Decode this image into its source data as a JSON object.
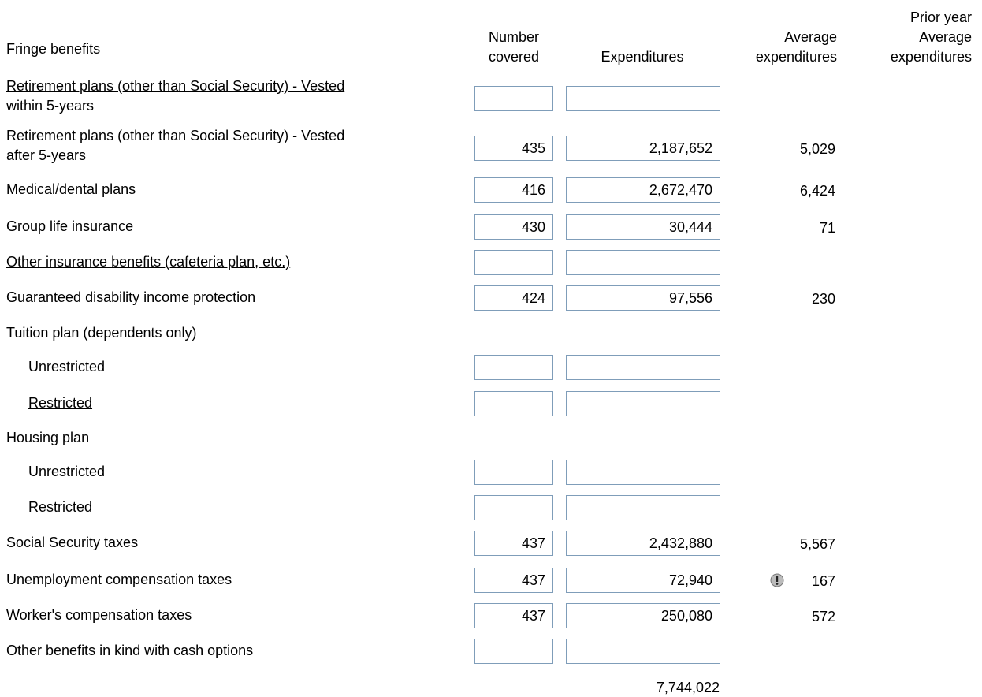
{
  "header": {
    "label": "Fringe benefits",
    "number": [
      "Number",
      "covered"
    ],
    "expenditures": "Expenditures",
    "average": [
      "Average",
      "expenditures"
    ],
    "prior": [
      "Prior year",
      "Average",
      "expenditures"
    ]
  },
  "rows": [
    {
      "label": [
        "Retirement plans (other than Social Security) - Vested",
        "within 5-years"
      ],
      "underline": true,
      "inputs": true
    },
    {
      "label": [
        "Retirement plans (other than Social Security) - Vested",
        "after 5-years"
      ],
      "inputs": true,
      "number": "435",
      "expenditure": "2,187,652",
      "average": "5,029"
    },
    {
      "label": [
        "Medical/dental plans"
      ],
      "inputs": true,
      "number": "416",
      "expenditure": "2,672,470",
      "average": "6,424"
    },
    {
      "label": [
        "Group life insurance"
      ],
      "inputs": true,
      "number": "430",
      "expenditure": "30,444",
      "average": "71"
    },
    {
      "label": [
        "Other insurance benefits (cafeteria plan, etc.)"
      ],
      "underline": true,
      "inputs": true
    },
    {
      "label": [
        "Guaranteed disability income protection"
      ],
      "inputs": true,
      "number": "424",
      "expenditure": "97,556",
      "average": "230"
    },
    {
      "label": [
        "Tuition plan (dependents only)"
      ]
    },
    {
      "label": [
        "Unrestricted"
      ],
      "indent": true,
      "inputs": true
    },
    {
      "label": [
        "Restricted"
      ],
      "indent": true,
      "underline": true,
      "inputs": true
    },
    {
      "label": [
        "Housing plan"
      ]
    },
    {
      "label": [
        "Unrestricted"
      ],
      "indent": true,
      "inputs": true
    },
    {
      "label": [
        "Restricted"
      ],
      "indent": true,
      "underline": true,
      "inputs": true
    },
    {
      "label": [
        "Social Security taxes"
      ],
      "inputs": true,
      "number": "437",
      "expenditure": "2,432,880",
      "average": "5,567"
    },
    {
      "label": [
        "Unemployment compensation taxes"
      ],
      "inputs": true,
      "number": "437",
      "expenditure": "72,940",
      "average": "167",
      "warning": true
    },
    {
      "label": [
        "Worker's compensation taxes"
      ],
      "inputs": true,
      "number": "437",
      "expenditure": "250,080",
      "average": "572"
    },
    {
      "label": [
        "Other benefits in kind with cash options"
      ],
      "inputs": true
    }
  ],
  "total": "7,744,022"
}
